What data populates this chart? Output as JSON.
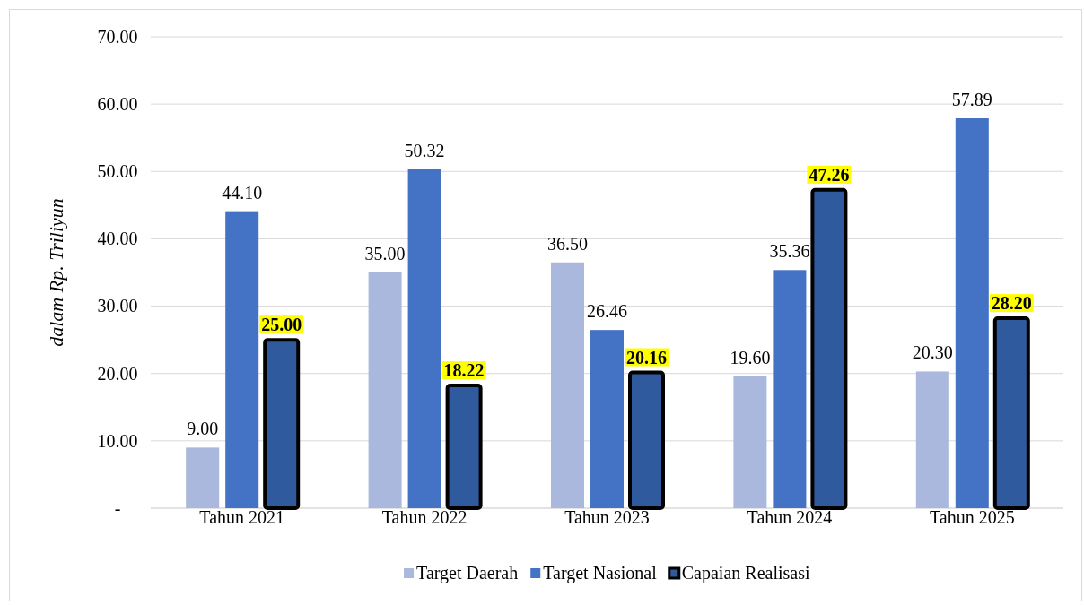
{
  "chart_data": {
    "type": "bar",
    "ylabel": "dalam Rp. Triliyun",
    "categories": [
      "Tahun 2021",
      "Tahun 2022",
      "Tahun 2023",
      "Tahun 2024",
      "Tahun 2025"
    ],
    "series": [
      {
        "name": "Target Daerah",
        "color": "#a9b8dc",
        "values": [
          9.0,
          35.0,
          36.5,
          19.6,
          20.3
        ],
        "value_labels": [
          "9.00",
          "35.00",
          "36.50",
          "19.60",
          "20.30"
        ]
      },
      {
        "name": "Target Nasional",
        "color": "#4472c4",
        "values": [
          44.1,
          50.32,
          26.46,
          35.36,
          57.89
        ],
        "value_labels": [
          "44.10",
          "50.32",
          "26.46",
          "35.36",
          "57.89"
        ]
      },
      {
        "name": "Capaian Realisasi",
        "color": "#2f5b9e",
        "values": [
          25.0,
          18.22,
          20.16,
          47.26,
          28.2
        ],
        "value_labels": [
          "25.00",
          "18.22",
          "20.16",
          "47.26",
          "28.20"
        ]
      }
    ],
    "ylim": [
      0,
      70
    ],
    "yticks": [
      {
        "value": 0,
        "label": "-"
      },
      {
        "value": 10,
        "label": "10.00"
      },
      {
        "value": 20,
        "label": "20.00"
      },
      {
        "value": 30,
        "label": "30.00"
      },
      {
        "value": 40,
        "label": "40.00"
      },
      {
        "value": 50,
        "label": "50.00"
      },
      {
        "value": 60,
        "label": "60.00"
      },
      {
        "value": 70,
        "label": "70.00"
      }
    ],
    "grid": "y",
    "legend": "bottom"
  }
}
